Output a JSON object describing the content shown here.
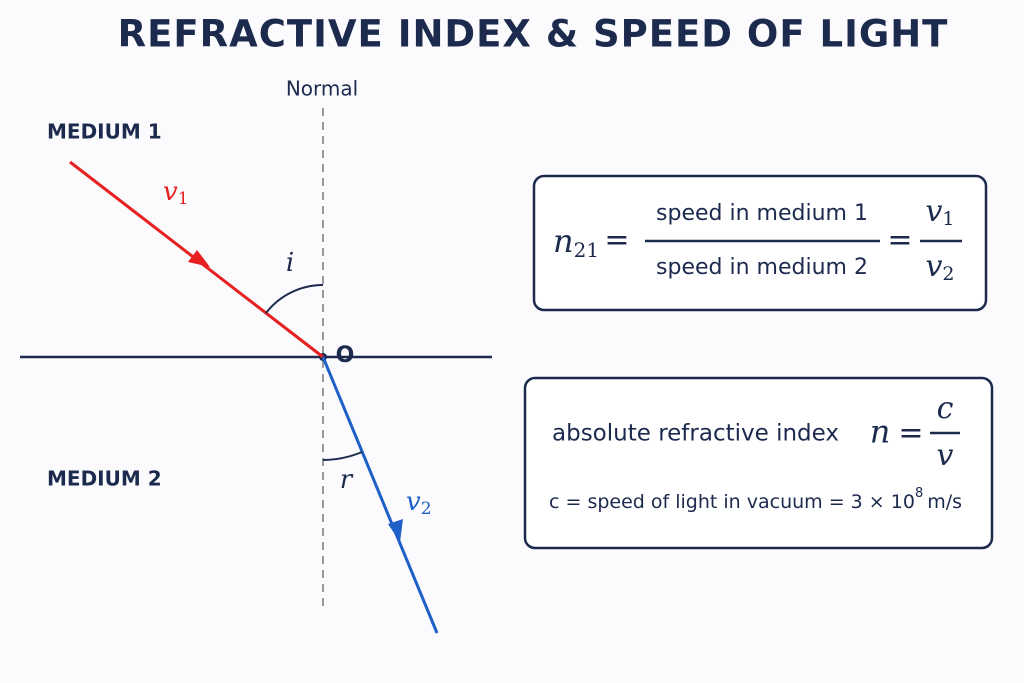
{
  "header": {
    "title": "REFRACTIVE INDEX & SPEED OF LIGHT"
  },
  "diagram": {
    "normal_label": "Normal",
    "medium_1": "MEDIUM 1",
    "medium_2": "MEDIUM 2",
    "incident_speed": {
      "base": "v",
      "sub": "1"
    },
    "refracted_speed": {
      "base": "v",
      "sub": "2"
    },
    "angle_incidence": "i",
    "angle_refraction": "r",
    "point": "O"
  },
  "formula_1": {
    "lhs": {
      "base": "n",
      "sub": "21"
    },
    "equals_1": "=",
    "numerator": "speed in medium 1",
    "denominator": "speed in medium 2",
    "equals_2": "=",
    "ratio_numerator": {
      "base": "v",
      "sub": "1"
    },
    "ratio_denominator": {
      "base": "v",
      "sub": "2"
    }
  },
  "formula_2": {
    "label": "absolute refractive index",
    "symbol": "n",
    "equals": "=",
    "numerator": "c",
    "denominator": "v",
    "note": {
      "text": "c = speed of light in vacuum = 3 × 10",
      "exponent": "8",
      "unit": "m/s"
    }
  }
}
